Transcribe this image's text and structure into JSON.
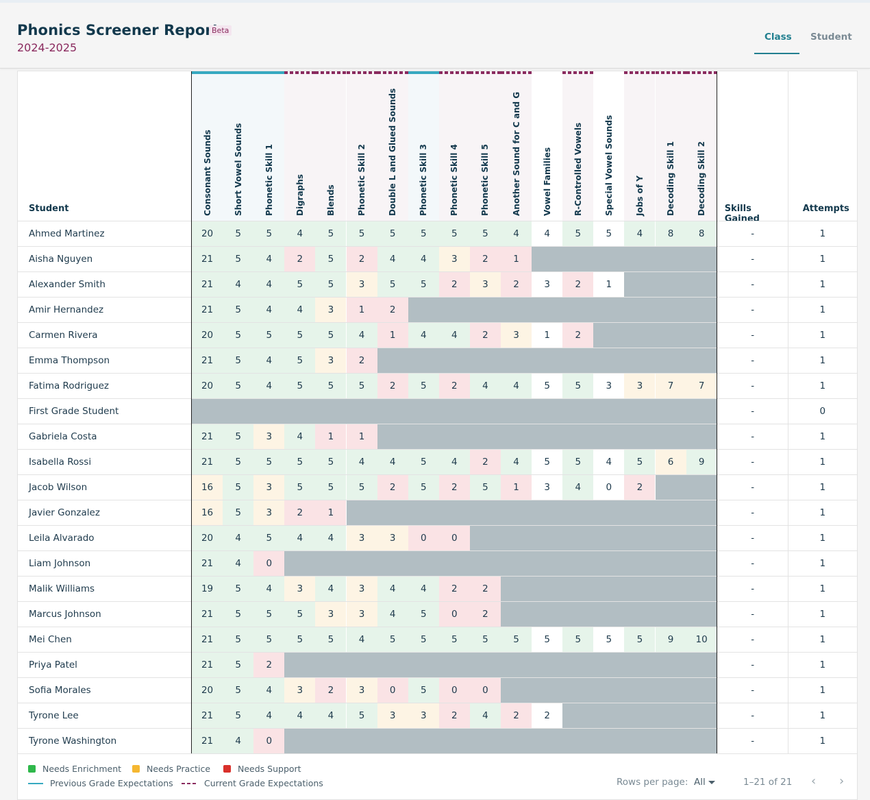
{
  "header": {
    "title": "Phonics Screener Report",
    "beta": "Beta",
    "year": "2024-2025",
    "tabs": [
      "Class",
      "Student"
    ]
  },
  "table": {
    "student_header": "Student",
    "skills_gained_header": "Skills Gained",
    "attempts_header": "Attempts",
    "skills": [
      "Consonant Sounds",
      "Short Vowel Sounds",
      "Phonetic Skill 1",
      "Digraphs",
      "Blends",
      "Phonetic Skill 2",
      "Double L and Glued Sounds",
      "Phonetic Skill 3",
      "Phonetic Skill 4",
      "Phonetic Skill 5",
      "Another Sound for C and G",
      "Vowel Families",
      "R-Controlled Vowels",
      "Special Vowel Sounds",
      "Jobs of Y",
      "Decoding Skill 1",
      "Decoding Skill 2"
    ],
    "expectation_bars": [
      "prev",
      "prev",
      "prev",
      "cur",
      "cur",
      "cur",
      "cur",
      "prev",
      "cur",
      "cur",
      "cur",
      "none",
      "cur",
      "none",
      "cur",
      "cur",
      "cur"
    ],
    "rows": [
      {
        "name": "Ahmed Martinez",
        "scores": [
          "20",
          "5",
          "5",
          "4",
          "5",
          "5",
          "5",
          "5",
          "5",
          "5",
          "4",
          "4",
          "5",
          "5",
          "4",
          "8",
          "8"
        ],
        "status": [
          "g",
          "g",
          "g",
          "g",
          "g",
          "g",
          "g",
          "g",
          "g",
          "g",
          "g",
          "w",
          "g",
          "w",
          "g",
          "g",
          "g"
        ],
        "skills_gained": "-",
        "attempts": "1"
      },
      {
        "name": "Aisha Nguyen",
        "scores": [
          "21",
          "5",
          "4",
          "2",
          "5",
          "2",
          "4",
          "4",
          "3",
          "2",
          "1"
        ],
        "status": [
          "g",
          "g",
          "g",
          "r",
          "g",
          "r",
          "g",
          "g",
          "y",
          "r",
          "r"
        ],
        "skills_gained": "-",
        "attempts": "1"
      },
      {
        "name": "Alexander Smith",
        "scores": [
          "21",
          "4",
          "4",
          "5",
          "5",
          "3",
          "5",
          "5",
          "2",
          "3",
          "2",
          "3",
          "2",
          "1"
        ],
        "status": [
          "g",
          "g",
          "g",
          "g",
          "g",
          "y",
          "g",
          "g",
          "r",
          "y",
          "r",
          "w",
          "r",
          "w"
        ],
        "skills_gained": "-",
        "attempts": "1"
      },
      {
        "name": "Amir Hernandez",
        "scores": [
          "21",
          "5",
          "4",
          "4",
          "3",
          "1",
          "2"
        ],
        "status": [
          "g",
          "g",
          "g",
          "g",
          "y",
          "r",
          "r"
        ],
        "skills_gained": "-",
        "attempts": "1"
      },
      {
        "name": "Carmen Rivera",
        "scores": [
          "20",
          "5",
          "5",
          "5",
          "5",
          "4",
          "1",
          "4",
          "4",
          "2",
          "3",
          "1",
          "2"
        ],
        "status": [
          "g",
          "g",
          "g",
          "g",
          "g",
          "g",
          "r",
          "g",
          "g",
          "r",
          "y",
          "w",
          "r"
        ],
        "skills_gained": "-",
        "attempts": "1"
      },
      {
        "name": "Emma Thompson",
        "scores": [
          "21",
          "5",
          "4",
          "5",
          "3",
          "2"
        ],
        "status": [
          "g",
          "g",
          "g",
          "g",
          "y",
          "r"
        ],
        "skills_gained": "-",
        "attempts": "1"
      },
      {
        "name": "Fatima Rodriguez",
        "scores": [
          "20",
          "5",
          "4",
          "5",
          "5",
          "5",
          "2",
          "5",
          "2",
          "4",
          "4",
          "5",
          "5",
          "3",
          "3",
          "7",
          "7"
        ],
        "status": [
          "g",
          "g",
          "g",
          "g",
          "g",
          "g",
          "r",
          "g",
          "r",
          "g",
          "g",
          "w",
          "g",
          "w",
          "y",
          "y",
          "y"
        ],
        "skills_gained": "-",
        "attempts": "1"
      },
      {
        "name": "First Grade Student",
        "scores": [],
        "status": [],
        "skills_gained": "-",
        "attempts": "0"
      },
      {
        "name": "Gabriela Costa",
        "scores": [
          "21",
          "5",
          "3",
          "4",
          "1",
          "1"
        ],
        "status": [
          "g",
          "g",
          "y",
          "g",
          "r",
          "r"
        ],
        "skills_gained": "-",
        "attempts": "1"
      },
      {
        "name": "Isabella Rossi",
        "scores": [
          "21",
          "5",
          "5",
          "5",
          "5",
          "4",
          "4",
          "5",
          "4",
          "2",
          "4",
          "5",
          "5",
          "4",
          "5",
          "6",
          "9"
        ],
        "status": [
          "g",
          "g",
          "g",
          "g",
          "g",
          "g",
          "g",
          "g",
          "g",
          "r",
          "g",
          "w",
          "g",
          "w",
          "g",
          "y",
          "g"
        ],
        "skills_gained": "-",
        "attempts": "1"
      },
      {
        "name": "Jacob Wilson",
        "scores": [
          "16",
          "5",
          "3",
          "5",
          "5",
          "5",
          "2",
          "5",
          "2",
          "5",
          "1",
          "3",
          "4",
          "0",
          "2"
        ],
        "status": [
          "y",
          "g",
          "y",
          "g",
          "g",
          "g",
          "r",
          "g",
          "r",
          "g",
          "r",
          "w",
          "g",
          "w",
          "r"
        ],
        "skills_gained": "-",
        "attempts": "1"
      },
      {
        "name": "Javier Gonzalez",
        "scores": [
          "16",
          "5",
          "3",
          "2",
          "1"
        ],
        "status": [
          "y",
          "g",
          "y",
          "r",
          "r"
        ],
        "skills_gained": "-",
        "attempts": "1"
      },
      {
        "name": "Leila Alvarado",
        "scores": [
          "20",
          "4",
          "5",
          "4",
          "4",
          "3",
          "3",
          "0",
          "0"
        ],
        "status": [
          "g",
          "g",
          "g",
          "g",
          "g",
          "y",
          "y",
          "r",
          "r"
        ],
        "skills_gained": "-",
        "attempts": "1"
      },
      {
        "name": "Liam Johnson",
        "scores": [
          "21",
          "4",
          "0"
        ],
        "status": [
          "g",
          "g",
          "r"
        ],
        "skills_gained": "-",
        "attempts": "1"
      },
      {
        "name": "Malik Williams",
        "scores": [
          "19",
          "5",
          "4",
          "3",
          "4",
          "3",
          "4",
          "4",
          "2",
          "2"
        ],
        "status": [
          "g",
          "g",
          "g",
          "y",
          "g",
          "y",
          "g",
          "g",
          "r",
          "r"
        ],
        "skills_gained": "-",
        "attempts": "1"
      },
      {
        "name": "Marcus Johnson",
        "scores": [
          "21",
          "5",
          "5",
          "5",
          "3",
          "3",
          "4",
          "5",
          "0",
          "2"
        ],
        "status": [
          "g",
          "g",
          "g",
          "g",
          "y",
          "y",
          "g",
          "g",
          "r",
          "r"
        ],
        "skills_gained": "-",
        "attempts": "1"
      },
      {
        "name": "Mei Chen",
        "scores": [
          "21",
          "5",
          "5",
          "5",
          "5",
          "4",
          "5",
          "5",
          "5",
          "5",
          "5",
          "5",
          "5",
          "5",
          "5",
          "9",
          "10"
        ],
        "status": [
          "g",
          "g",
          "g",
          "g",
          "g",
          "g",
          "g",
          "g",
          "g",
          "g",
          "g",
          "w",
          "g",
          "w",
          "g",
          "g",
          "g"
        ],
        "skills_gained": "-",
        "attempts": "1"
      },
      {
        "name": "Priya Patel",
        "scores": [
          "21",
          "5",
          "2"
        ],
        "status": [
          "g",
          "g",
          "r"
        ],
        "skills_gained": "-",
        "attempts": "1"
      },
      {
        "name": "Sofia Morales",
        "scores": [
          "20",
          "5",
          "4",
          "3",
          "2",
          "3",
          "0",
          "5",
          "0",
          "0"
        ],
        "status": [
          "g",
          "g",
          "g",
          "y",
          "r",
          "y",
          "r",
          "g",
          "r",
          "r"
        ],
        "skills_gained": "-",
        "attempts": "1"
      },
      {
        "name": "Tyrone Lee",
        "scores": [
          "21",
          "5",
          "4",
          "4",
          "4",
          "5",
          "3",
          "3",
          "2",
          "4",
          "2",
          "2"
        ],
        "status": [
          "g",
          "g",
          "g",
          "g",
          "g",
          "g",
          "y",
          "y",
          "r",
          "g",
          "r",
          "w"
        ],
        "skills_gained": "-",
        "attempts": "1"
      },
      {
        "name": "Tyrone Washington",
        "scores": [
          "21",
          "4",
          "0"
        ],
        "status": [
          "g",
          "g",
          "r"
        ],
        "skills_gained": "-",
        "attempts": "1"
      }
    ]
  },
  "legend": {
    "needs_enrichment": "Needs Enrichment",
    "needs_practice": "Needs Practice",
    "needs_support": "Needs Support",
    "previous_grade": "Previous Grade Expectations",
    "current_grade": "Current Grade Expectations"
  },
  "pagination": {
    "rows_per_page_label": "Rows per page:",
    "rows_per_page_value": "All",
    "range": "1–21 of 21"
  },
  "colors": {
    "enrichment": "#2fb84b",
    "practice": "#f5b731",
    "support": "#d9302b",
    "cell_green": "#e6f4ea",
    "cell_yellow": "#fdf4e4",
    "cell_red": "#fae3e5",
    "no_data": "#b2bec3",
    "previous_bar": "#36a9c0",
    "current_bar": "#8a2a5e"
  }
}
